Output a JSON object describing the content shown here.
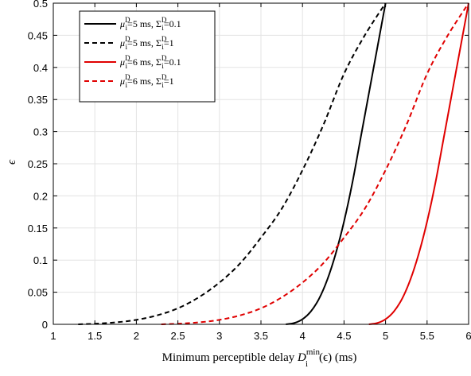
{
  "chart_data": {
    "type": "line",
    "xlabel_main": "Minimum perceptible delay ",
    "xlabel_var": "D",
    "xlabel_sub": "i",
    "xlabel_sup": "min",
    "xlabel_arg": "(ϵ) (ms)",
    "ylabel": "ϵ",
    "xlim": [
      1,
      6
    ],
    "ylim": [
      0,
      0.5
    ],
    "xticks": [
      1,
      1.5,
      2,
      2.5,
      3,
      3.5,
      4,
      4.5,
      5,
      5.5,
      6
    ],
    "xtick_labels": [
      "1",
      "1.5",
      "2",
      "2.5",
      "3",
      "3.5",
      "4",
      "4.5",
      "5",
      "5.5",
      "6"
    ],
    "yticks": [
      0,
      0.05,
      0.1,
      0.15,
      0.2,
      0.25,
      0.3,
      0.35,
      0.4,
      0.45,
      0.5
    ],
    "ytick_labels": [
      "0",
      "0.05",
      "0.1",
      "0.15",
      "0.2",
      "0.25",
      "0.3",
      "0.35",
      "0.4",
      "0.45",
      "0.5"
    ],
    "grid": true,
    "legend_position": "top-left",
    "series": [
      {
        "name": "μ=5 ms, Σ=0.1",
        "legend": {
          "mu": "μ",
          "mu_sub": "i",
          "mu_sup": "D",
          "mu_val": "=5 ms, ",
          "sig": "Σ",
          "sig_sub": "i",
          "sig_sup": "D",
          "sig_val": "=0.1"
        },
        "color": "#000000",
        "dash": "solid",
        "x": [
          3.8,
          3.9,
          4.0,
          4.1,
          4.2,
          4.3,
          4.4,
          4.5,
          4.6,
          4.7,
          4.8,
          4.9,
          5.0
        ],
        "y": [
          0.0,
          0.002,
          0.008,
          0.02,
          0.04,
          0.07,
          0.11,
          0.16,
          0.22,
          0.29,
          0.36,
          0.43,
          0.5
        ]
      },
      {
        "name": "μ=5 ms, Σ=1",
        "legend": {
          "mu": "μ",
          "mu_sub": "i",
          "mu_sup": "D",
          "mu_val": "=5 ms, ",
          "sig": "Σ",
          "sig_sub": "i",
          "sig_sup": "D",
          "sig_val": "=1"
        },
        "color": "#000000",
        "dash": "dashed",
        "x": [
          1.3,
          1.5,
          1.75,
          2.0,
          2.25,
          2.5,
          2.75,
          3.0,
          3.25,
          3.5,
          3.75,
          4.0,
          4.25,
          4.5,
          4.75,
          5.0
        ],
        "y": [
          0.0,
          0.001,
          0.003,
          0.007,
          0.014,
          0.025,
          0.042,
          0.065,
          0.095,
          0.135,
          0.18,
          0.24,
          0.31,
          0.39,
          0.45,
          0.5
        ]
      },
      {
        "name": "μ=6 ms, Σ=0.1",
        "legend": {
          "mu": "μ",
          "mu_sub": "i",
          "mu_sup": "D",
          "mu_val": "=6 ms, ",
          "sig": "Σ",
          "sig_sub": "i",
          "sig_sup": "D",
          "sig_val": "=0.1"
        },
        "color": "#e00000",
        "dash": "solid",
        "x": [
          4.8,
          4.9,
          5.0,
          5.1,
          5.2,
          5.3,
          5.4,
          5.5,
          5.6,
          5.7,
          5.8,
          5.9,
          6.0
        ],
        "y": [
          0.0,
          0.002,
          0.008,
          0.02,
          0.04,
          0.07,
          0.11,
          0.16,
          0.22,
          0.29,
          0.36,
          0.43,
          0.5
        ]
      },
      {
        "name": "μ=6 ms, Σ=1",
        "legend": {
          "mu": "μ",
          "mu_sub": "i",
          "mu_sup": "D",
          "mu_val": "=6 ms, ",
          "sig": "Σ",
          "sig_sub": "i",
          "sig_sup": "D",
          "sig_val": "=1"
        },
        "color": "#e00000",
        "dash": "dashed",
        "x": [
          2.3,
          2.5,
          2.75,
          3.0,
          3.25,
          3.5,
          3.75,
          4.0,
          4.25,
          4.5,
          4.75,
          5.0,
          5.25,
          5.5,
          5.75,
          6.0
        ],
        "y": [
          0.0,
          0.001,
          0.003,
          0.007,
          0.014,
          0.025,
          0.042,
          0.065,
          0.095,
          0.135,
          0.18,
          0.24,
          0.31,
          0.39,
          0.45,
          0.5
        ]
      }
    ]
  }
}
